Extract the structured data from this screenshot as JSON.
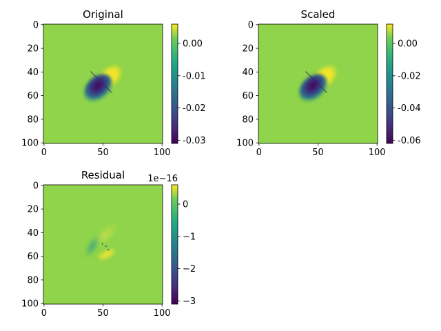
{
  "chart_data": [
    {
      "type": "heatmap",
      "title": "Original",
      "grid": false,
      "x_range": [
        0,
        101
      ],
      "y_range": [
        0,
        101
      ],
      "y_inverted": true,
      "x_ticks": [
        "0",
        "50",
        "100"
      ],
      "y_ticks": [
        "0",
        "20",
        "40",
        "60",
        "80",
        "100"
      ],
      "colormap": "viridis",
      "background_value": 0.0,
      "colorbar": {
        "min": -0.031,
        "max": 0.006,
        "ticks": [
          "0.00",
          "-0.01",
          "-0.02",
          "-0.03"
        ],
        "tick_values": [
          0.0,
          -0.01,
          -0.02,
          -0.03
        ],
        "offset_label": ""
      },
      "features": {
        "diagonal_edge": {
          "from": [
            40,
            40
          ],
          "to": [
            58,
            58
          ]
        },
        "positive_lobe": {
          "peak_value": 0.006,
          "extent_x": [
            42,
            68
          ],
          "extent_y": [
            34,
            58
          ]
        },
        "negative_lobe": {
          "peak_value": -0.031,
          "extent_x": [
            35,
            60
          ],
          "extent_y": [
            42,
            65
          ]
        }
      }
    },
    {
      "type": "heatmap",
      "title": "Scaled",
      "grid": false,
      "x_range": [
        0,
        101
      ],
      "y_range": [
        0,
        101
      ],
      "y_inverted": true,
      "x_ticks": [
        "0",
        "50",
        "100"
      ],
      "y_ticks": [
        "0",
        "20",
        "40",
        "60",
        "80",
        "100"
      ],
      "colormap": "viridis",
      "background_value": 0.0,
      "colorbar": {
        "min": -0.062,
        "max": 0.012,
        "ticks": [
          "0.00",
          "-0.02",
          "-0.04",
          "-0.06"
        ],
        "tick_values": [
          0.0,
          -0.02,
          -0.04,
          -0.06
        ],
        "offset_label": ""
      },
      "features": {
        "diagonal_edge": {
          "from": [
            40,
            40
          ],
          "to": [
            58,
            58
          ]
        },
        "positive_lobe": {
          "peak_value": 0.012,
          "extent_x": [
            42,
            68
          ],
          "extent_y": [
            34,
            58
          ]
        },
        "negative_lobe": {
          "peak_value": -0.062,
          "extent_x": [
            35,
            60
          ],
          "extent_y": [
            42,
            65
          ]
        }
      }
    },
    {
      "type": "heatmap",
      "title": "Residual",
      "grid": false,
      "x_range": [
        0,
        101
      ],
      "y_range": [
        0,
        101
      ],
      "y_inverted": true,
      "x_ticks": [
        "0",
        "50",
        "100"
      ],
      "y_ticks": [
        "0",
        "20",
        "40",
        "60",
        "80",
        "100"
      ],
      "colormap": "viridis",
      "background_value": 0.0,
      "colorbar": {
        "min": -3.1,
        "max": 0.6,
        "ticks": [
          "0",
          "−1",
          "−2",
          "−3"
        ],
        "tick_values": [
          0,
          -1,
          -2,
          -3
        ],
        "offset_label": "1e−16"
      },
      "features": {
        "faint_upper_band": {
          "value": 0.3,
          "extent_x": [
            40,
            66
          ],
          "extent_y": [
            34,
            50
          ]
        },
        "teal_left_band": {
          "value": -0.7,
          "extent_x": [
            35,
            48
          ],
          "extent_y": [
            42,
            62
          ]
        },
        "yellow_lower_band": {
          "value": 0.55,
          "extent_x": [
            45,
            62
          ],
          "extent_y": [
            54,
            64
          ]
        },
        "dots": [
          [
            50,
            50
          ],
          [
            53,
            52
          ],
          [
            55,
            55
          ]
        ]
      }
    }
  ]
}
